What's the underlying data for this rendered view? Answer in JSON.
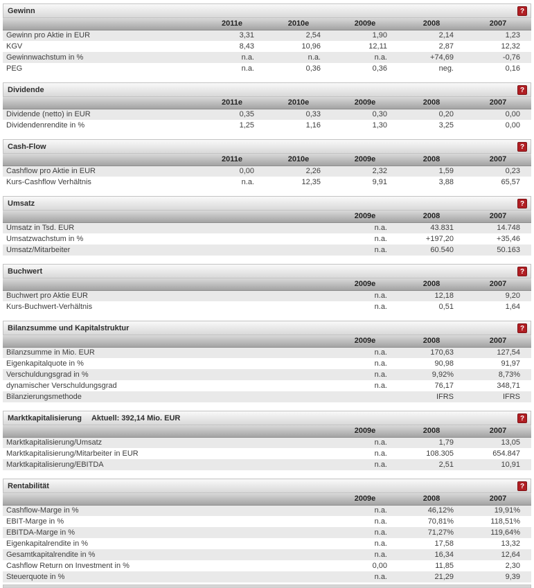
{
  "help_badge_label": "?",
  "colors": {
    "accent_red": "#b01e23",
    "section_bar_border": "#c3c3c3",
    "header_row_top": "#d9d9d9",
    "header_row_bottom": "#a3a3a3",
    "row_alt_bg": "#e9e9e9",
    "text": "#3d3d3d"
  },
  "sections": [
    {
      "title": "Gewinn",
      "subtitle": "",
      "columns": [
        "2011e",
        "2010e",
        "2009e",
        "2008",
        "2007"
      ],
      "rows": [
        {
          "label": "Gewinn pro Aktie in EUR",
          "values": [
            "3,31",
            "2,54",
            "1,90",
            "2,14",
            "1,23"
          ]
        },
        {
          "label": "KGV",
          "values": [
            "8,43",
            "10,96",
            "12,11",
            "2,87",
            "12,32"
          ]
        },
        {
          "label": "Gewinnwachstum in %",
          "values": [
            "n.a.",
            "n.a.",
            "n.a.",
            "+74,69",
            "-0,76"
          ]
        },
        {
          "label": "PEG",
          "values": [
            "n.a.",
            "0,36",
            "0,36",
            "neg.",
            "0,16"
          ]
        }
      ]
    },
    {
      "title": "Dividende",
      "subtitle": "",
      "columns": [
        "2011e",
        "2010e",
        "2009e",
        "2008",
        "2007"
      ],
      "rows": [
        {
          "label": "Dividende (netto) in EUR",
          "values": [
            "0,35",
            "0,33",
            "0,30",
            "0,20",
            "0,00"
          ]
        },
        {
          "label": "Dividendenrendite in %",
          "values": [
            "1,25",
            "1,16",
            "1,30",
            "3,25",
            "0,00"
          ]
        }
      ]
    },
    {
      "title": "Cash-Flow",
      "subtitle": "",
      "columns": [
        "2011e",
        "2010e",
        "2009e",
        "2008",
        "2007"
      ],
      "rows": [
        {
          "label": "Cashflow pro Aktie in EUR",
          "values": [
            "0,00",
            "2,26",
            "2,32",
            "1,59",
            "0,23"
          ]
        },
        {
          "label": "Kurs-Cashflow Verhältnis",
          "values": [
            "n.a.",
            "12,35",
            "9,91",
            "3,88",
            "65,57"
          ]
        }
      ]
    },
    {
      "title": "Umsatz",
      "subtitle": "",
      "columns": [
        "2009e",
        "2008",
        "2007"
      ],
      "rows": [
        {
          "label": "Umsatz in Tsd. EUR",
          "values": [
            "n.a.",
            "43.831",
            "14.748"
          ]
        },
        {
          "label": "Umsatzwachstum in %",
          "values": [
            "n.a.",
            "+197,20",
            "+35,46"
          ]
        },
        {
          "label": "Umsatz/Mitarbeiter",
          "values": [
            "n.a.",
            "60.540",
            "50.163"
          ]
        }
      ]
    },
    {
      "title": "Buchwert",
      "subtitle": "",
      "columns": [
        "2009e",
        "2008",
        "2007"
      ],
      "rows": [
        {
          "label": "Buchwert pro Aktie EUR",
          "values": [
            "n.a.",
            "12,18",
            "9,20"
          ]
        },
        {
          "label": "Kurs-Buchwert-Verhältnis",
          "values": [
            "n.a.",
            "0,51",
            "1,64"
          ]
        }
      ]
    },
    {
      "title": "Bilanzsumme und Kapitalstruktur",
      "subtitle": "",
      "columns": [
        "2009e",
        "2008",
        "2007"
      ],
      "rows": [
        {
          "label": "Bilanzsumme in Mio. EUR",
          "values": [
            "n.a.",
            "170,63",
            "127,54"
          ]
        },
        {
          "label": "Eigenkapitalquote in %",
          "values": [
            "n.a.",
            "90,98",
            "91,97"
          ]
        },
        {
          "label": "Verschuldungsgrad in %",
          "values": [
            "n.a.",
            "9,92%",
            "8,73%"
          ]
        },
        {
          "label": "dynamischer Verschuldungsgrad",
          "values": [
            "n.a.",
            "76,17",
            "348,71"
          ]
        },
        {
          "label": "Bilanzierungsmethode",
          "values": [
            "",
            "IFRS",
            "IFRS"
          ]
        }
      ]
    },
    {
      "title": "Marktkapitalisierung",
      "subtitle": "Aktuell: 392,14 Mio. EUR",
      "columns": [
        "2009e",
        "2008",
        "2007"
      ],
      "rows": [
        {
          "label": "Marktkapitalisierung/Umsatz",
          "values": [
            "n.a.",
            "1,79",
            "13,05"
          ]
        },
        {
          "label": "Marktkapitalisierung/Mitarbeiter in EUR",
          "values": [
            "n.a.",
            "108.305",
            "654.847"
          ]
        },
        {
          "label": "Marktkapitalisierung/EBITDA",
          "values": [
            "n.a.",
            "2,51",
            "10,91"
          ]
        }
      ]
    },
    {
      "title": "Rentabilität",
      "subtitle": "",
      "columns": [
        "2009e",
        "2008",
        "2007"
      ],
      "rows": [
        {
          "label": "Cashflow-Marge in %",
          "values": [
            "n.a.",
            "46,12%",
            "19,91%"
          ]
        },
        {
          "label": "EBIT-Marge in %",
          "values": [
            "n.a.",
            "70,81%",
            "118,51%"
          ]
        },
        {
          "label": "EBITDA-Marge in %",
          "values": [
            "n.a.",
            "71,27%",
            "119,64%"
          ]
        },
        {
          "label": "Eigenkapitalrendite in %",
          "values": [
            "n.a.",
            "17,58",
            "13,32"
          ]
        },
        {
          "label": "Gesamtkapitalrendite in %",
          "values": [
            "n.a.",
            "16,34",
            "12,64"
          ]
        },
        {
          "label": "Cashflow Return on Investment in %",
          "values": [
            "0,00",
            "11,85",
            "2,30"
          ]
        },
        {
          "label": "Steuerquote in %",
          "values": [
            "n.a.",
            "21,29",
            "9,39"
          ]
        }
      ]
    }
  ]
}
